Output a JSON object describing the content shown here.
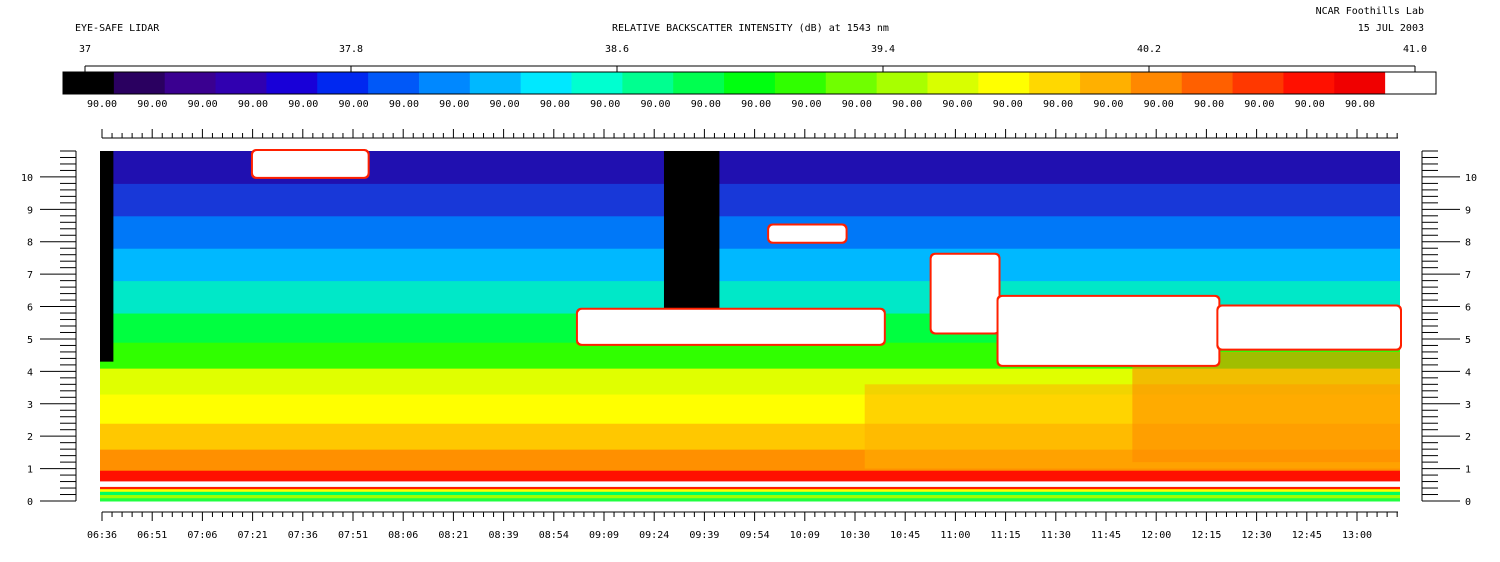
{
  "header": {
    "instrument": "EYE-SAFE LIDAR",
    "title": "RELATIVE BACKSCATTER INTENSITY (dB) at 1543 nm",
    "lab": "NCAR Foothills Lab",
    "date": "15 JUL 2003"
  },
  "chart_data": {
    "type": "heatmap",
    "title": "RELATIVE BACKSCATTER INTENSITY (dB) at 1543 nm",
    "colorbar": {
      "range": [
        37,
        41.0
      ],
      "tick_labels": [
        "37",
        "37.8",
        "38.6",
        "39.4",
        "40.2",
        "41.0"
      ],
      "tick_values": [
        37,
        37.8,
        38.6,
        39.4,
        40.2,
        41.0
      ],
      "bin_label": "90.00",
      "bin_count": 26,
      "colors": [
        "#000000",
        "#2a0060",
        "#3a0090",
        "#3000b0",
        "#1800d8",
        "#0028f0",
        "#0058f8",
        "#0088ff",
        "#00b8ff",
        "#00e8ff",
        "#00ffd0",
        "#00ff90",
        "#00ff50",
        "#00ff10",
        "#30ff00",
        "#70ff00",
        "#a8ff00",
        "#d8ff00",
        "#ffff00",
        "#ffd800",
        "#ffb000",
        "#ff8800",
        "#ff6000",
        "#ff3800",
        "#ff1000",
        "#f00000",
        "#ffffff"
      ]
    },
    "x_tick_labels": [
      "06:36",
      "06:51",
      "07:06",
      "07:21",
      "07:36",
      "07:51",
      "08:06",
      "08:21",
      "08:39",
      "08:54",
      "09:09",
      "09:24",
      "09:39",
      "09:54",
      "10:09",
      "10:30",
      "10:45",
      "11:00",
      "11:15",
      "11:30",
      "11:45",
      "12:00",
      "12:15",
      "12:30",
      "12:45",
      "13:00"
    ],
    "y_tick_labels": [
      "0",
      "1",
      "2",
      "3",
      "4",
      "5",
      "6",
      "7",
      "8",
      "9",
      "10"
    ],
    "y_tick_values": [
      0,
      1,
      2,
      3,
      4,
      5,
      6,
      7,
      8,
      9,
      10
    ],
    "ylim": [
      0,
      10.8
    ],
    "grid": false,
    "layers": [
      {
        "from": 0.0,
        "to": 0.1,
        "color": "#20ff40"
      },
      {
        "from": 0.1,
        "to": 0.2,
        "color": "#a0ff00"
      },
      {
        "from": 0.2,
        "to": 0.3,
        "color": "#00ff60"
      },
      {
        "from": 0.3,
        "to": 0.38,
        "color": "#ffff00"
      },
      {
        "from": 0.38,
        "to": 0.45,
        "color": "#ff2000"
      },
      {
        "from": 0.45,
        "to": 0.62,
        "color": "#ffffff"
      },
      {
        "from": 0.62,
        "to": 0.95,
        "color": "#ff1000"
      },
      {
        "from": 0.95,
        "to": 1.6,
        "color": "#ff9000"
      },
      {
        "from": 1.6,
        "to": 2.4,
        "color": "#ffc800"
      },
      {
        "from": 2.4,
        "to": 3.3,
        "color": "#ffff00"
      },
      {
        "from": 3.3,
        "to": 4.1,
        "color": "#e0ff00"
      },
      {
        "from": 4.1,
        "to": 4.9,
        "color": "#30ff00"
      },
      {
        "from": 4.9,
        "to": 5.8,
        "color": "#00ff40"
      },
      {
        "from": 5.8,
        "to": 6.8,
        "color": "#00e8c8"
      },
      {
        "from": 6.8,
        "to": 7.8,
        "color": "#00b8ff"
      },
      {
        "from": 7.8,
        "to": 8.8,
        "color": "#0078f8"
      },
      {
        "from": 8.8,
        "to": 9.8,
        "color": "#1838d8"
      },
      {
        "from": 9.8,
        "to": 10.8,
        "color": "#2010b0"
      }
    ],
    "clouds": [
      {
        "name": "cloud-patch-top-left",
        "t_from": 7.4,
        "t_to": 8.0,
        "h_from": 10.0,
        "h_to": 10.8
      },
      {
        "name": "cloud-patch-mid-upper",
        "t_from": 10.1,
        "t_to": 10.5,
        "h_from": 8.0,
        "h_to": 8.5
      },
      {
        "name": "cloud-patch-mid",
        "t_from": 9.1,
        "t_to": 10.7,
        "h_from": 4.85,
        "h_to": 5.9
      },
      {
        "name": "cloud-patch-right-arm",
        "t_from": 10.95,
        "t_to": 11.3,
        "h_from": 5.2,
        "h_to": 7.6
      },
      {
        "name": "cloud-patch-right-body",
        "t_from": 11.3,
        "t_to": 12.45,
        "h_from": 4.2,
        "h_to": 6.3
      },
      {
        "name": "cloud-patch-right-deck",
        "t_from": 12.45,
        "t_to": 13.4,
        "h_from": 4.7,
        "h_to": 6.0
      }
    ],
    "no_data": [
      {
        "name": "no-data-column-left",
        "t_from": 6.6,
        "t_to": 6.67,
        "h_from": 4.3,
        "h_to": 10.8
      },
      {
        "name": "no-data-column-mid",
        "t_from": 9.55,
        "t_to": 9.84,
        "h_from": 5.9,
        "h_to": 10.8
      }
    ]
  }
}
